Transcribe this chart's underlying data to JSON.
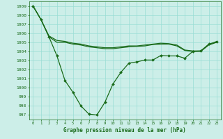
{
  "xlabel": "Graphe pression niveau de la mer (hPa)",
  "bg_color": "#cceee8",
  "grid_color": "#99ddd5",
  "line_color": "#1a6b1a",
  "ylim": [
    996.5,
    1009.5
  ],
  "xlim": [
    -0.5,
    23.5
  ],
  "yticks": [
    997,
    998,
    999,
    1000,
    1001,
    1002,
    1003,
    1004,
    1005,
    1006,
    1007,
    1008,
    1009
  ],
  "xticks": [
    0,
    1,
    2,
    3,
    4,
    5,
    6,
    7,
    8,
    9,
    10,
    11,
    12,
    13,
    14,
    15,
    16,
    17,
    18,
    19,
    20,
    21,
    22,
    23
  ],
  "series": [
    {
      "x": [
        0,
        1,
        2,
        3,
        4,
        5,
        6,
        7,
        8,
        9,
        10,
        11,
        12,
        13,
        14,
        15,
        16,
        17,
        18,
        19,
        20,
        21,
        22,
        23
      ],
      "y": [
        1009.0,
        1007.5,
        1005.7,
        1005.2,
        1005.1,
        1004.9,
        1004.8,
        1004.6,
        1004.5,
        1004.4,
        1004.4,
        1004.5,
        1004.6,
        1004.6,
        1004.7,
        1004.8,
        1004.9,
        1004.85,
        1004.7,
        1004.15,
        1004.05,
        1004.05,
        1004.75,
        1005.1
      ],
      "marker": false,
      "linewidth": 0.9
    },
    {
      "x": [
        0,
        1,
        2,
        3,
        4,
        5,
        6,
        7,
        8,
        9,
        10,
        11,
        12,
        13,
        14,
        15,
        16,
        17,
        18,
        19,
        20,
        21,
        22,
        23
      ],
      "y": [
        1009.0,
        1007.5,
        1005.6,
        1005.0,
        1005.0,
        1004.8,
        1004.7,
        1004.5,
        1004.4,
        1004.3,
        1004.3,
        1004.4,
        1004.5,
        1004.55,
        1004.6,
        1004.75,
        1004.8,
        1004.8,
        1004.6,
        1004.1,
        1004.0,
        1004.0,
        1004.7,
        1005.0
      ],
      "marker": false,
      "linewidth": 0.9
    },
    {
      "x": [
        0,
        1,
        2,
        3,
        4,
        5,
        6,
        7,
        8,
        9,
        10,
        11,
        12,
        13,
        14,
        15,
        16,
        17,
        18,
        19,
        20,
        21,
        22,
        23
      ],
      "y": [
        1009.0,
        1007.5,
        1005.6,
        1003.5,
        1000.8,
        999.5,
        998.0,
        997.1,
        997.0,
        998.4,
        1000.4,
        1001.7,
        1002.7,
        1002.85,
        1003.05,
        1003.05,
        1003.55,
        1003.5,
        1003.5,
        1003.25,
        1004.0,
        1004.05,
        1004.8,
        1005.05
      ],
      "marker": true,
      "linewidth": 0.9
    }
  ]
}
